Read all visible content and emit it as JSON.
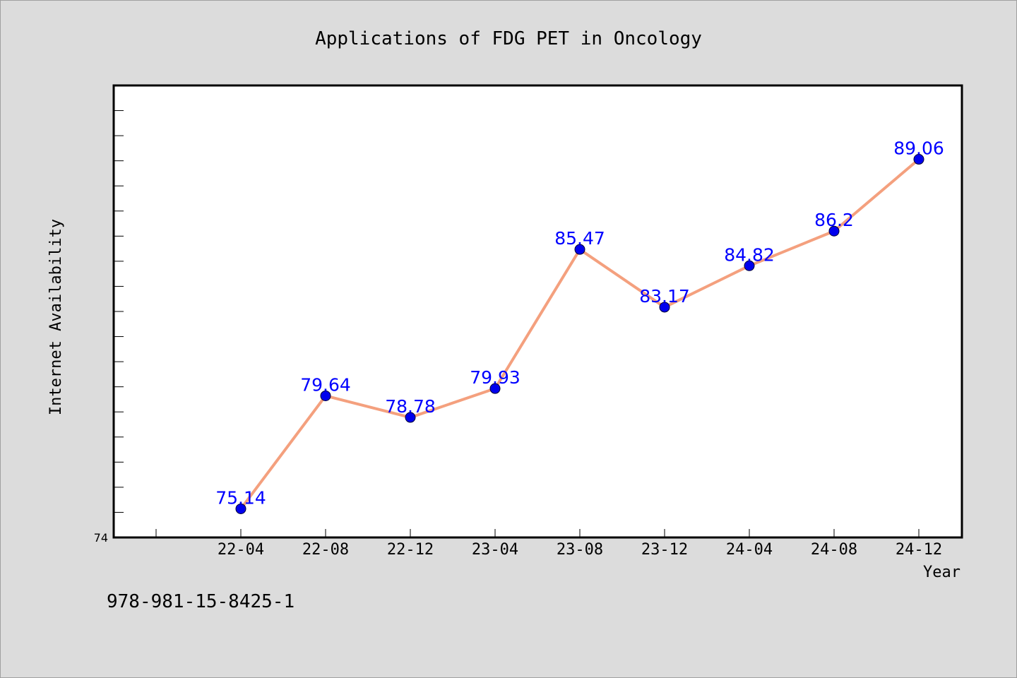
{
  "chart_data": {
    "type": "line",
    "title": "Applications of FDG PET in Oncology",
    "xlabel": "Year",
    "ylabel": "Internet Availability",
    "categories": [
      "22-04",
      "22-08",
      "22-12",
      "23-04",
      "23-08",
      "23-12",
      "24-04",
      "24-08",
      "24-12"
    ],
    "values": [
      75.14,
      79.64,
      78.78,
      79.93,
      85.47,
      83.17,
      84.82,
      86.2,
      89.06
    ],
    "data_labels": [
      "75.14",
      "79.64",
      "78.78",
      "79.93",
      "85.47",
      "83.17",
      "84.82",
      "86.2",
      "89.06"
    ],
    "y_tick_labels": [
      "74"
    ],
    "ylim": [
      74,
      92
    ],
    "grid": false,
    "line_color": "#f4a07e",
    "marker_color": "#0000ee",
    "label_color": "#0000ff"
  },
  "footer": {
    "code": "978-981-15-8425-1"
  }
}
